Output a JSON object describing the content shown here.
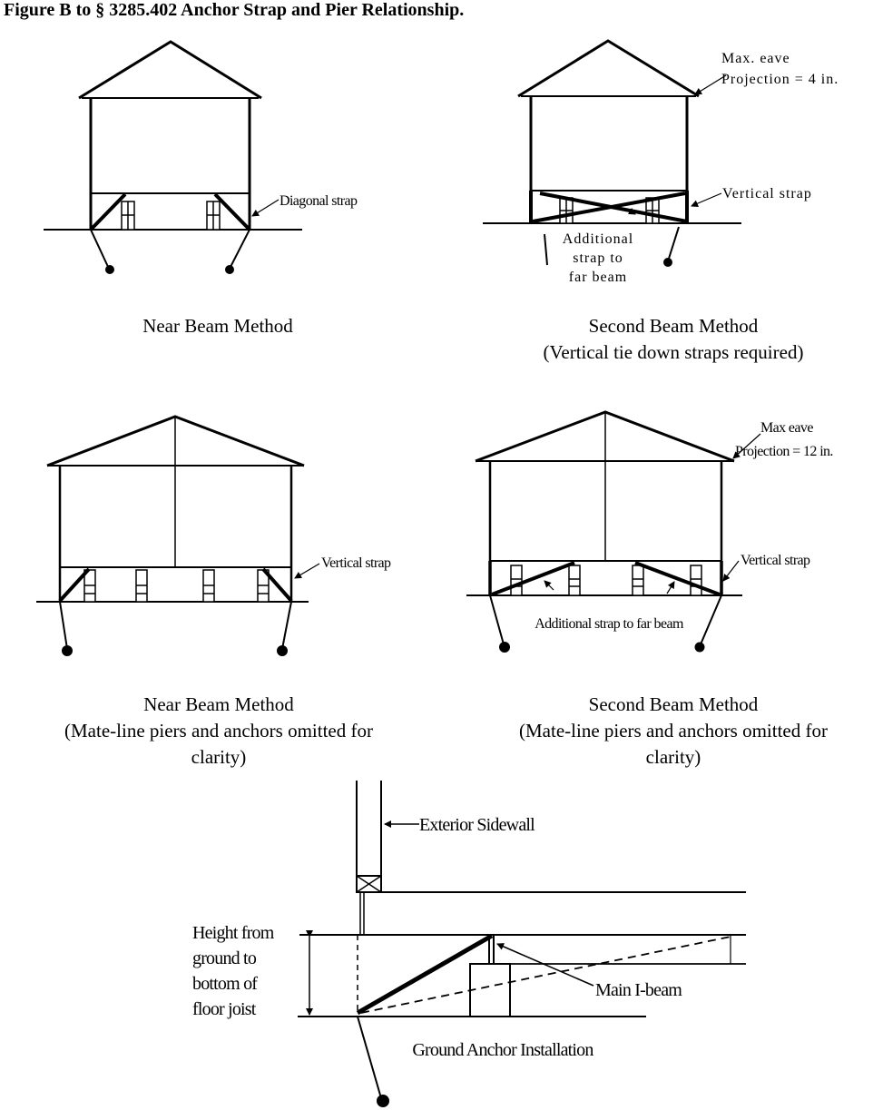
{
  "title": "Figure B to § 3285.402 Anchor Strap and Pier Relationship.",
  "fig1": {
    "caption": "Near Beam Method",
    "strap_label": "Diagonal strap"
  },
  "fig2": {
    "caption_line1": "Second Beam Method",
    "caption_line2": "(Vertical tie down straps required)",
    "eave_line1": "Max. eave",
    "eave_line2": "Projection = 4 in.",
    "strap_label": "Vertical strap",
    "additional_line1": "Additional",
    "additional_line2": "strap to",
    "additional_line3": "far beam"
  },
  "fig3": {
    "caption_line1": "Near Beam Method",
    "caption_line2": "(Mate-line piers and anchors omitted for",
    "caption_line3": "clarity)",
    "strap_label": "Vertical strap"
  },
  "fig4": {
    "caption_line1": "Second Beam Method",
    "caption_line2": "(Mate-line piers and anchors omitted for",
    "caption_line3": "clarity)",
    "eave_line1": "Max eave",
    "eave_line2": "Projection = 12 in.",
    "strap_label": "Vertical strap",
    "additional_label": "Additional strap to far beam"
  },
  "fig5": {
    "sidewall_label": "Exterior Sidewall",
    "height_line1": "Height from",
    "height_line2": "ground to",
    "height_line3": "bottom of",
    "height_line4": "floor joist",
    "ibeam_label": "Main I-beam",
    "caption": "Ground Anchor Installation"
  }
}
